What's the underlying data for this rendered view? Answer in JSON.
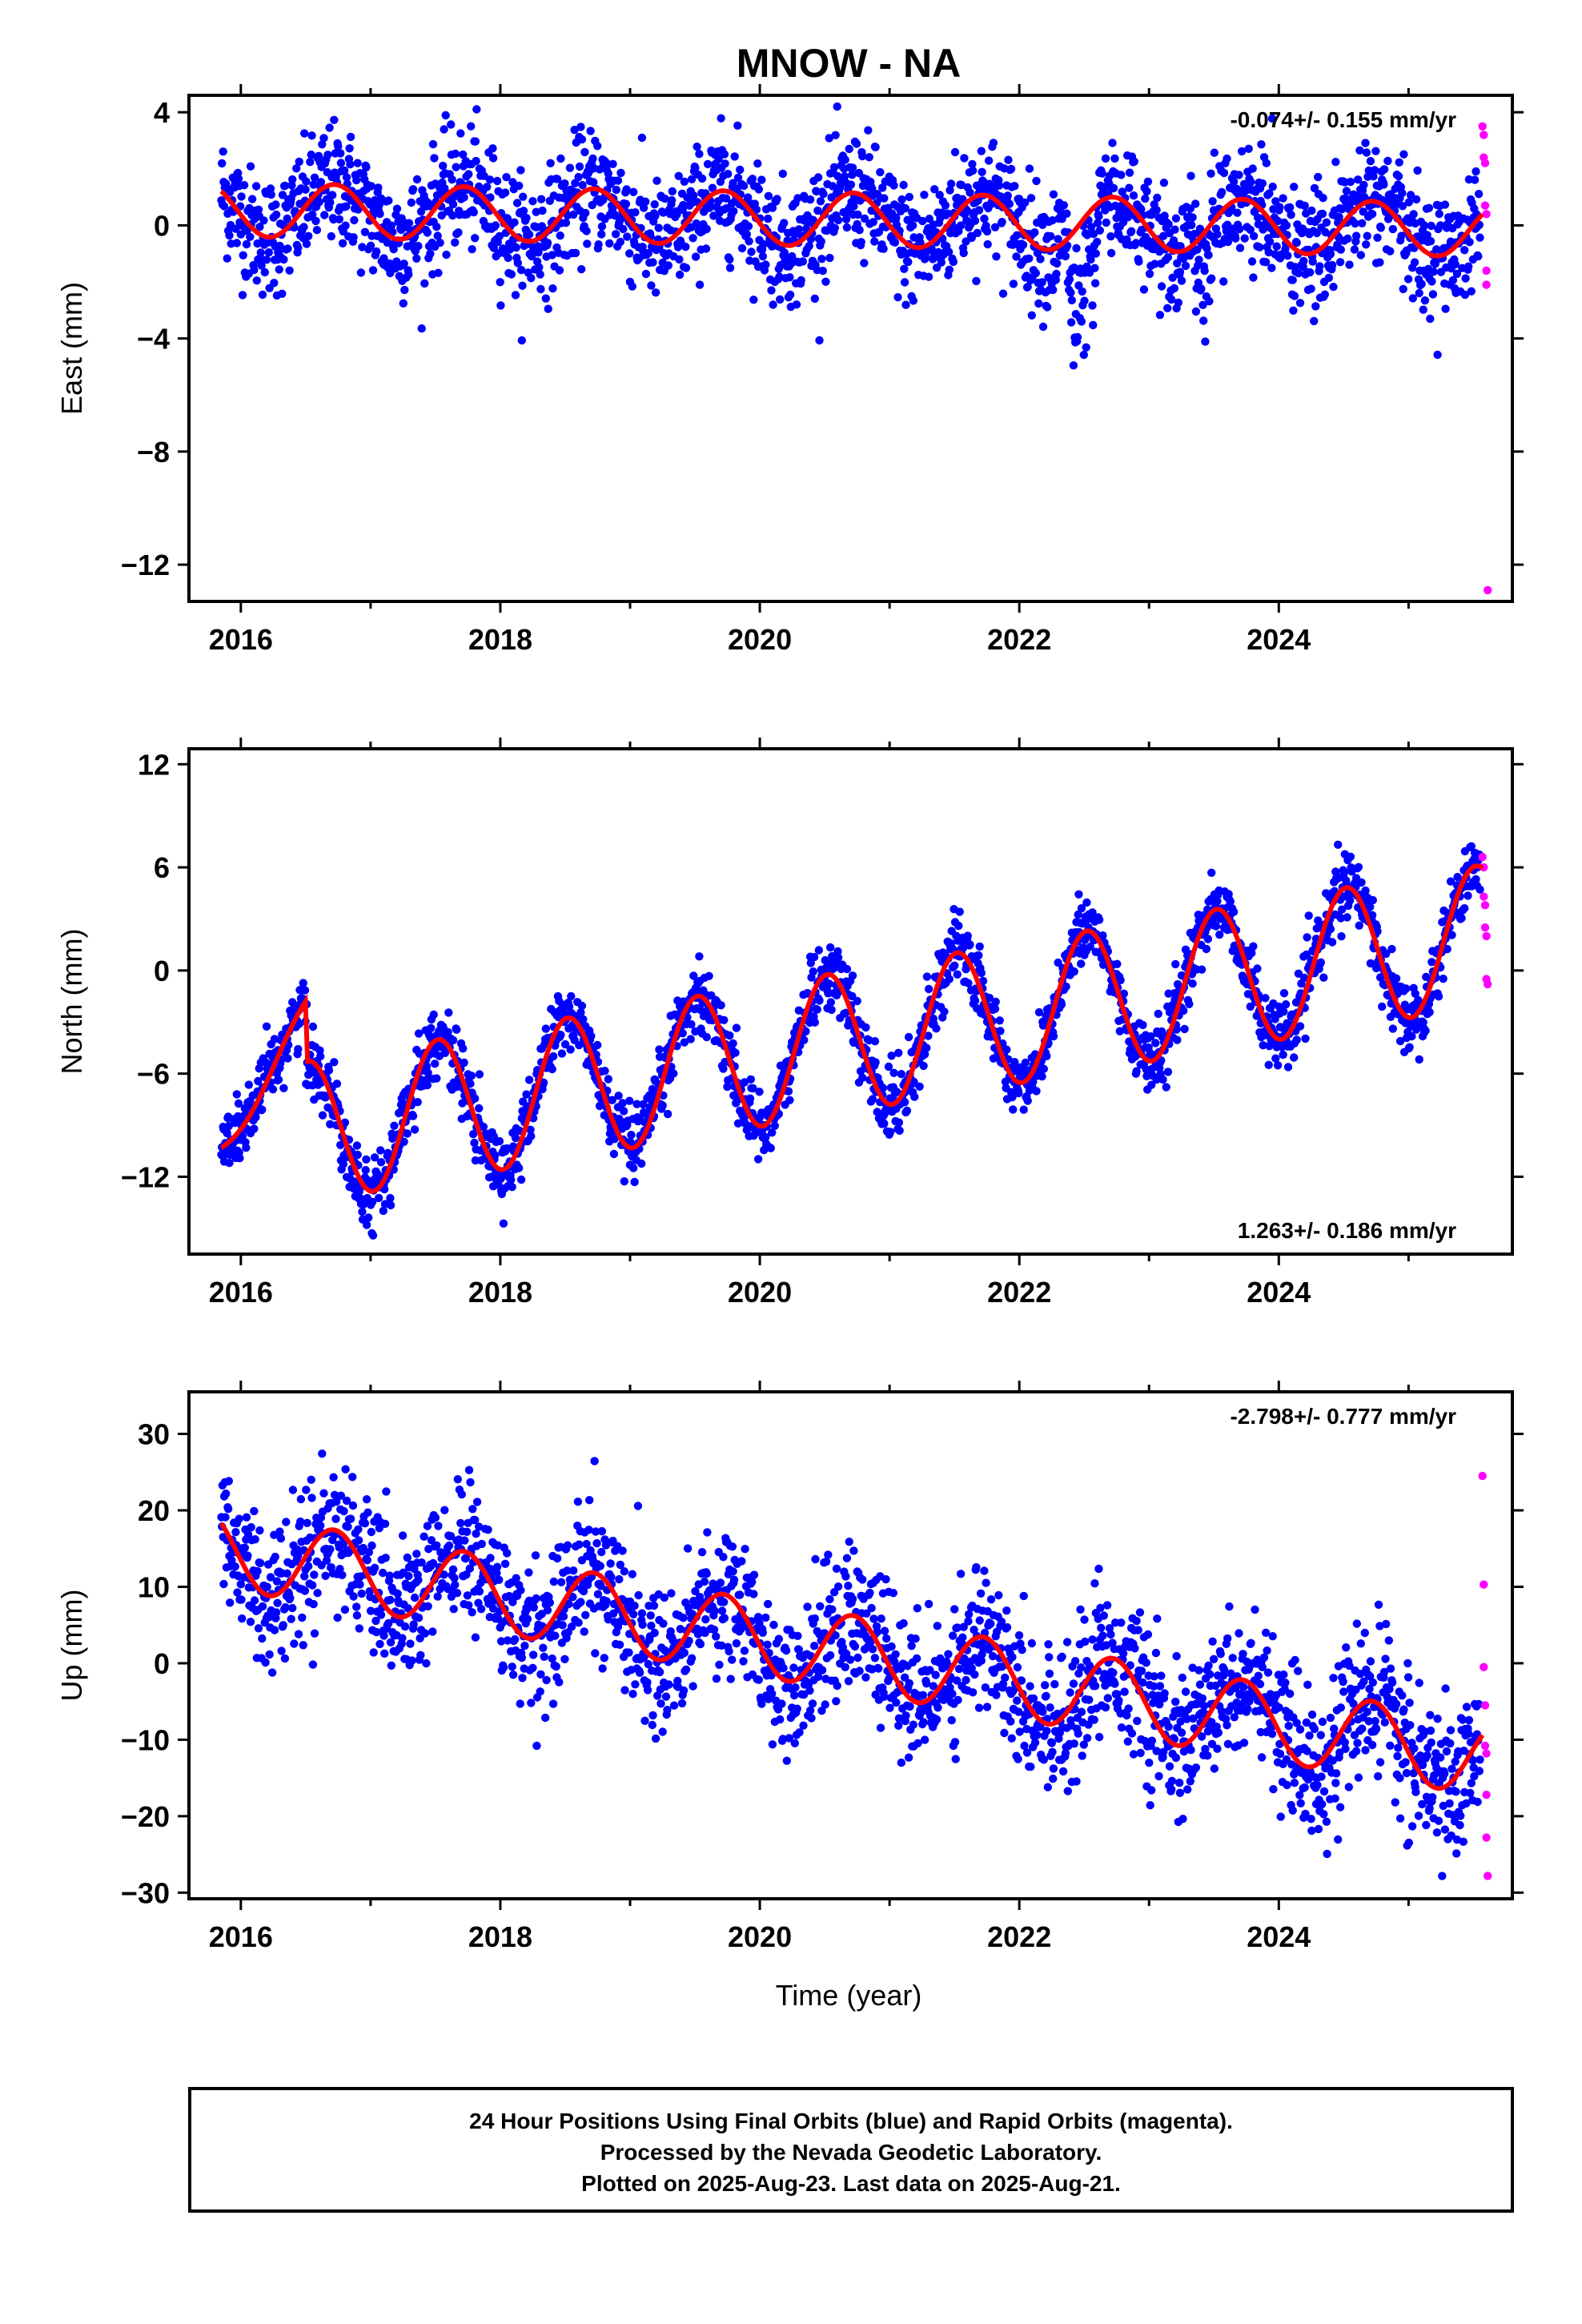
{
  "title": "MNOW - NA",
  "xlabel": "Time (year)",
  "footer": {
    "line1": "24 Hour Positions Using Final Orbits (blue) and Rapid Orbits (magenta).",
    "line2": "Processed by the Nevada Geodetic Laboratory.",
    "line3": "Plotted on 2025-Aug-23. Last data on 2025-Aug-21."
  },
  "colors": {
    "final": "#0000ff",
    "rapid": "#ff00ff",
    "model": "#ff0000",
    "frame": "#000000"
  },
  "chart_data": [
    {
      "type": "scatter",
      "panel": "east",
      "ylabel": "East (mm)",
      "xlim": [
        2015.6,
        2025.8
      ],
      "ylim": [
        -13.3,
        4.6
      ],
      "xticks": [
        2016,
        2018,
        2020,
        2022,
        2024
      ],
      "xtick_labels": [
        "2016",
        "2018",
        "2020",
        "2022",
        "2024"
      ],
      "yticks": [
        4,
        0,
        -4,
        -8,
        -12
      ],
      "ytick_labels": [
        "4",
        "0",
        "−4",
        "−8",
        "−12"
      ],
      "rate_label": "-0.074+/- 0.155 mm/yr",
      "rate_position": "top-right",
      "show_xtick_labels": true,
      "model": {
        "intercept": 0.2,
        "slope": -0.074,
        "amplitude": 0.95,
        "phase_year": 2016.72,
        "ramp": []
      },
      "noise_sd": 1.05,
      "spikes": [
        {
          "start": 2022.35,
          "end": 2022.62,
          "offset": -3.0
        },
        {
          "start": 2023.35,
          "end": 2023.5,
          "offset": -2.0
        }
      ],
      "final_range": [
        2015.85,
        2025.55
      ],
      "rapid": [
        {
          "x": 2025.57,
          "y": 3.5
        },
        {
          "x": 2025.58,
          "y": 3.2
        },
        {
          "x": 2025.58,
          "y": 2.4
        },
        {
          "x": 2025.59,
          "y": 2.2
        },
        {
          "x": 2025.59,
          "y": 0.7
        },
        {
          "x": 2025.6,
          "y": 0.4
        },
        {
          "x": 2025.6,
          "y": -1.6
        },
        {
          "x": 2025.6,
          "y": -2.1
        },
        {
          "x": 2025.61,
          "y": -12.9
        }
      ]
    },
    {
      "type": "scatter",
      "panel": "north",
      "ylabel": "North (mm)",
      "xlim": [
        2015.6,
        2025.8
      ],
      "ylim": [
        -16.5,
        12.9
      ],
      "xticks": [
        2016,
        2018,
        2020,
        2022,
        2024
      ],
      "xtick_labels": [
        "2016",
        "2018",
        "2020",
        "2022",
        "2024"
      ],
      "yticks": [
        12,
        6,
        0,
        -6,
        -12
      ],
      "ytick_labels": [
        "12",
        "6",
        "0",
        "−6",
        "−12"
      ],
      "rate_label": "1.263+/- 0.186 mm/yr",
      "rate_position": "bottom-right",
      "show_xtick_labels": true,
      "model": {
        "intercept": -4.1,
        "slope": 1.263,
        "amplitude": 4.1,
        "phase_year": 2016.52,
        "ramp": [
          [
            2015.85,
            -9.7
          ],
          [
            2016.5,
            -0.6
          ]
        ]
      },
      "noise_sd": 1.0,
      "spikes": [],
      "final_range": [
        2015.85,
        2025.55
      ],
      "rapid": [
        {
          "x": 2025.57,
          "y": 6.6
        },
        {
          "x": 2025.58,
          "y": 6.0
        },
        {
          "x": 2025.58,
          "y": 4.3
        },
        {
          "x": 2025.59,
          "y": 3.8
        },
        {
          "x": 2025.59,
          "y": 2.5
        },
        {
          "x": 2025.6,
          "y": 2.0
        },
        {
          "x": 2025.6,
          "y": -0.5
        },
        {
          "x": 2025.61,
          "y": -0.8
        }
      ]
    },
    {
      "type": "scatter",
      "panel": "up",
      "ylabel": "Up (mm)",
      "xlim": [
        2015.6,
        2025.8
      ],
      "ylim": [
        -30.8,
        35.5
      ],
      "xticks": [
        2016,
        2018,
        2020,
        2022,
        2024
      ],
      "xtick_labels": [
        "2016",
        "2018",
        "2020",
        "2022",
        "2024"
      ],
      "yticks": [
        30,
        20,
        10,
        0,
        -10,
        -20,
        -30
      ],
      "ytick_labels": [
        "30",
        "20",
        "10",
        "0",
        "−10",
        "−20",
        "−30"
      ],
      "rate_label": "-2.798+/- 0.777 mm/yr",
      "rate_position": "top-right",
      "show_xtick_labels": true,
      "model": {
        "intercept": 1.3,
        "slope": -2.798,
        "amplitude": 5.0,
        "phase_year": 2016.72,
        "ramp": []
      },
      "noise_sd": 4.6,
      "spikes": [],
      "final_range": [
        2015.85,
        2025.55
      ],
      "rapid": [
        {
          "x": 2025.57,
          "y": 24.5
        },
        {
          "x": 2025.58,
          "y": 10.3
        },
        {
          "x": 2025.58,
          "y": -0.5
        },
        {
          "x": 2025.59,
          "y": -5.5
        },
        {
          "x": 2025.59,
          "y": -10.8
        },
        {
          "x": 2025.6,
          "y": -11.8
        },
        {
          "x": 2025.6,
          "y": -17.2
        },
        {
          "x": 2025.6,
          "y": -22.8
        },
        {
          "x": 2025.61,
          "y": -27.8
        }
      ]
    }
  ]
}
